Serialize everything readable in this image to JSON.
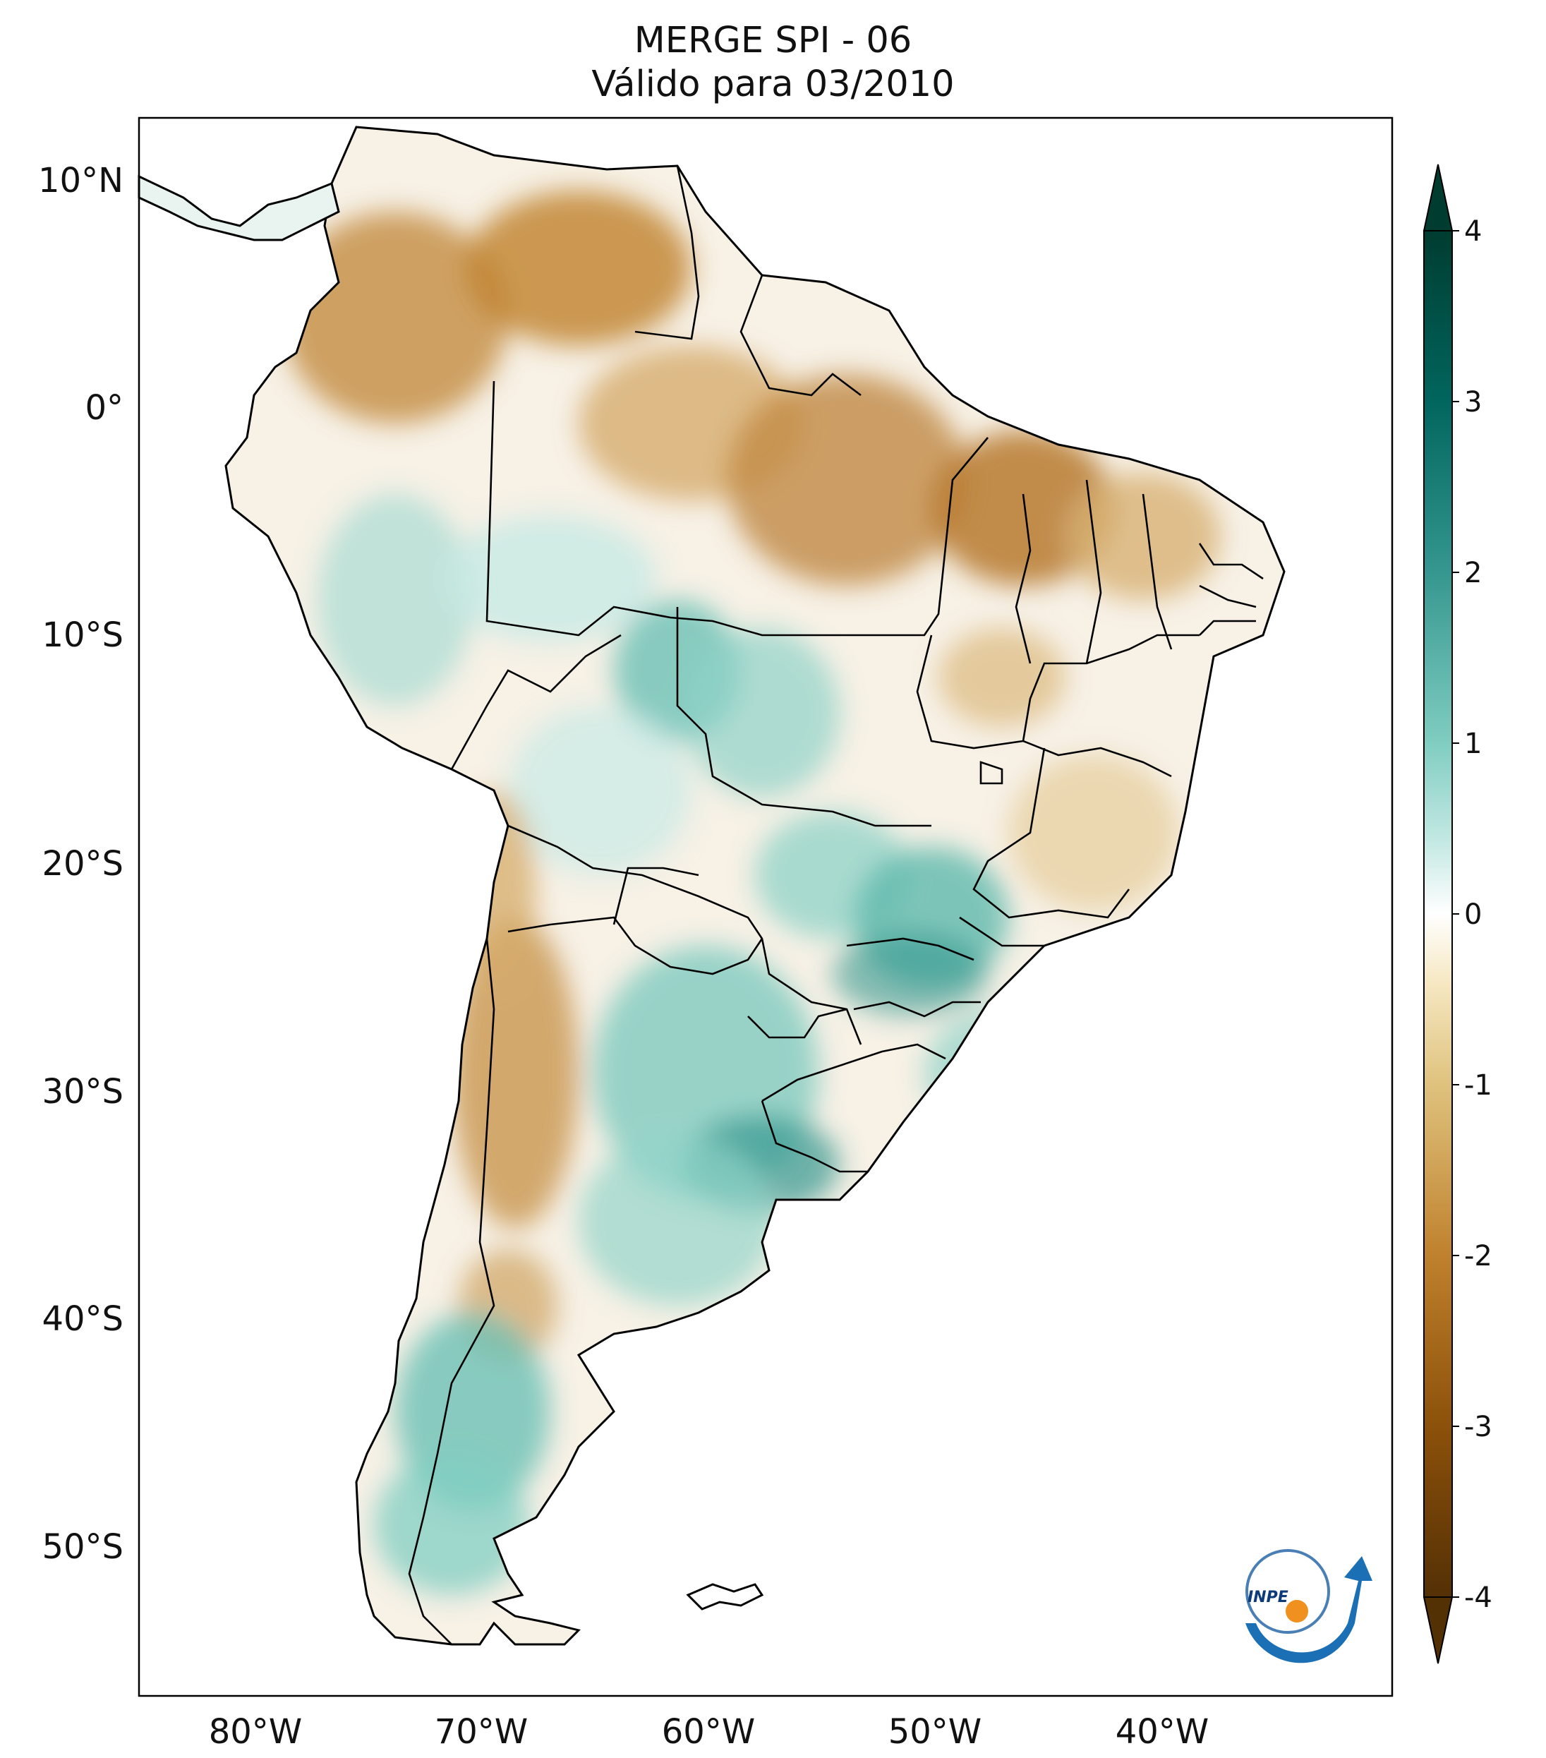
{
  "title": {
    "line1": "MERGE   SPI - 06",
    "line2": "Válido para 03/2010"
  },
  "axes": {
    "lat_ticks": [
      "10°N",
      "0°",
      "10°S",
      "20°S",
      "30°S",
      "40°S",
      "50°S"
    ],
    "lon_ticks": [
      "80°W",
      "70°W",
      "60°W",
      "50°W",
      "40°W"
    ]
  },
  "colorbar": {
    "ticks": [
      "4",
      "3",
      "2",
      "1",
      "0",
      "-1",
      "-2",
      "-3",
      "-4"
    ],
    "range": [
      -4,
      4
    ],
    "extend": "both",
    "colors": {
      "dry_extreme": "#543005",
      "dry_strong": "#8c510a",
      "dry_moderate": "#bf812d",
      "dry_mild": "#dfc27d",
      "dry_slight": "#f6e8c3",
      "neutral": "#ffffff",
      "wet_slight": "#c7eae5",
      "wet_mild": "#80cdc1",
      "wet_moderate": "#35978f",
      "wet_strong": "#01665e",
      "wet_extreme": "#003c30"
    }
  },
  "logo": {
    "text": "INPE"
  }
}
